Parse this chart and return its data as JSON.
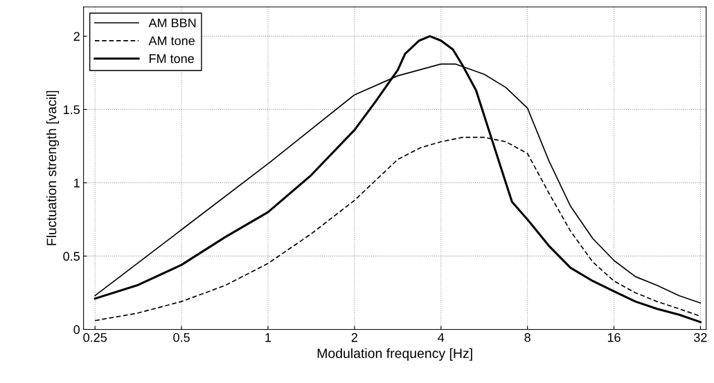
{
  "chart_data": {
    "type": "line",
    "xlabel": "Modulation frequency [Hz]",
    "ylabel": "Fluctuation strength [vacil]",
    "log": "x",
    "grid": true,
    "legend": "top left",
    "xlim": [
      0.228,
      33.5
    ],
    "xticks": [
      0.25,
      0.5,
      1,
      2,
      4,
      8,
      16,
      32
    ],
    "ylim": [
      0,
      2.2
    ],
    "yticks": [
      0,
      0.5,
      1,
      1.5,
      2
    ],
    "series": [
      {
        "name": "AM BBN",
        "color": "#000000",
        "line_style": "solid",
        "x": [
          0.25,
          0.5,
          1,
          2,
          2.83,
          4,
          4.5,
          5.66,
          6.73,
          8,
          9.5,
          11.3,
          13.5,
          16,
          19,
          22.6,
          27,
          32
        ],
        "values": [
          0.23,
          0.68,
          1.13,
          1.6,
          1.73,
          1.81,
          1.81,
          1.74,
          1.65,
          1.51,
          1.15,
          0.84,
          0.62,
          0.47,
          0.36,
          0.3,
          0.23,
          0.18
        ]
      },
      {
        "name": "AM tone",
        "color": "#000000",
        "line_style": "dashed",
        "x": [
          0.25,
          0.35,
          0.5,
          0.71,
          1,
          1.41,
          2,
          2.83,
          3.4,
          4,
          4.76,
          5.66,
          6.73,
          8,
          9.5,
          11.3,
          13.5,
          16,
          19,
          22.6,
          27,
          32
        ],
        "values": [
          0.06,
          0.11,
          0.19,
          0.3,
          0.45,
          0.65,
          0.88,
          1.16,
          1.24,
          1.28,
          1.31,
          1.31,
          1.28,
          1.2,
          0.93,
          0.67,
          0.46,
          0.33,
          0.25,
          0.19,
          0.14,
          0.09
        ]
      },
      {
        "name": "FM tone",
        "color": "#000000",
        "line_style": "solid",
        "x": [
          0.25,
          0.35,
          0.5,
          0.71,
          1,
          1.41,
          2,
          2.38,
          2.83,
          3.0,
          3.36,
          3.66,
          4,
          4.4,
          4.76,
          5.3,
          6.5,
          7.07,
          8,
          9.5,
          11.3,
          13.5,
          16,
          19,
          22.6,
          27,
          32
        ],
        "values": [
          0.21,
          0.3,
          0.44,
          0.63,
          0.8,
          1.05,
          1.36,
          1.56,
          1.77,
          1.88,
          1.97,
          2.0,
          1.97,
          1.91,
          1.8,
          1.63,
          1.09,
          0.87,
          0.75,
          0.57,
          0.42,
          0.33,
          0.26,
          0.19,
          0.14,
          0.1,
          0.05
        ]
      }
    ]
  }
}
